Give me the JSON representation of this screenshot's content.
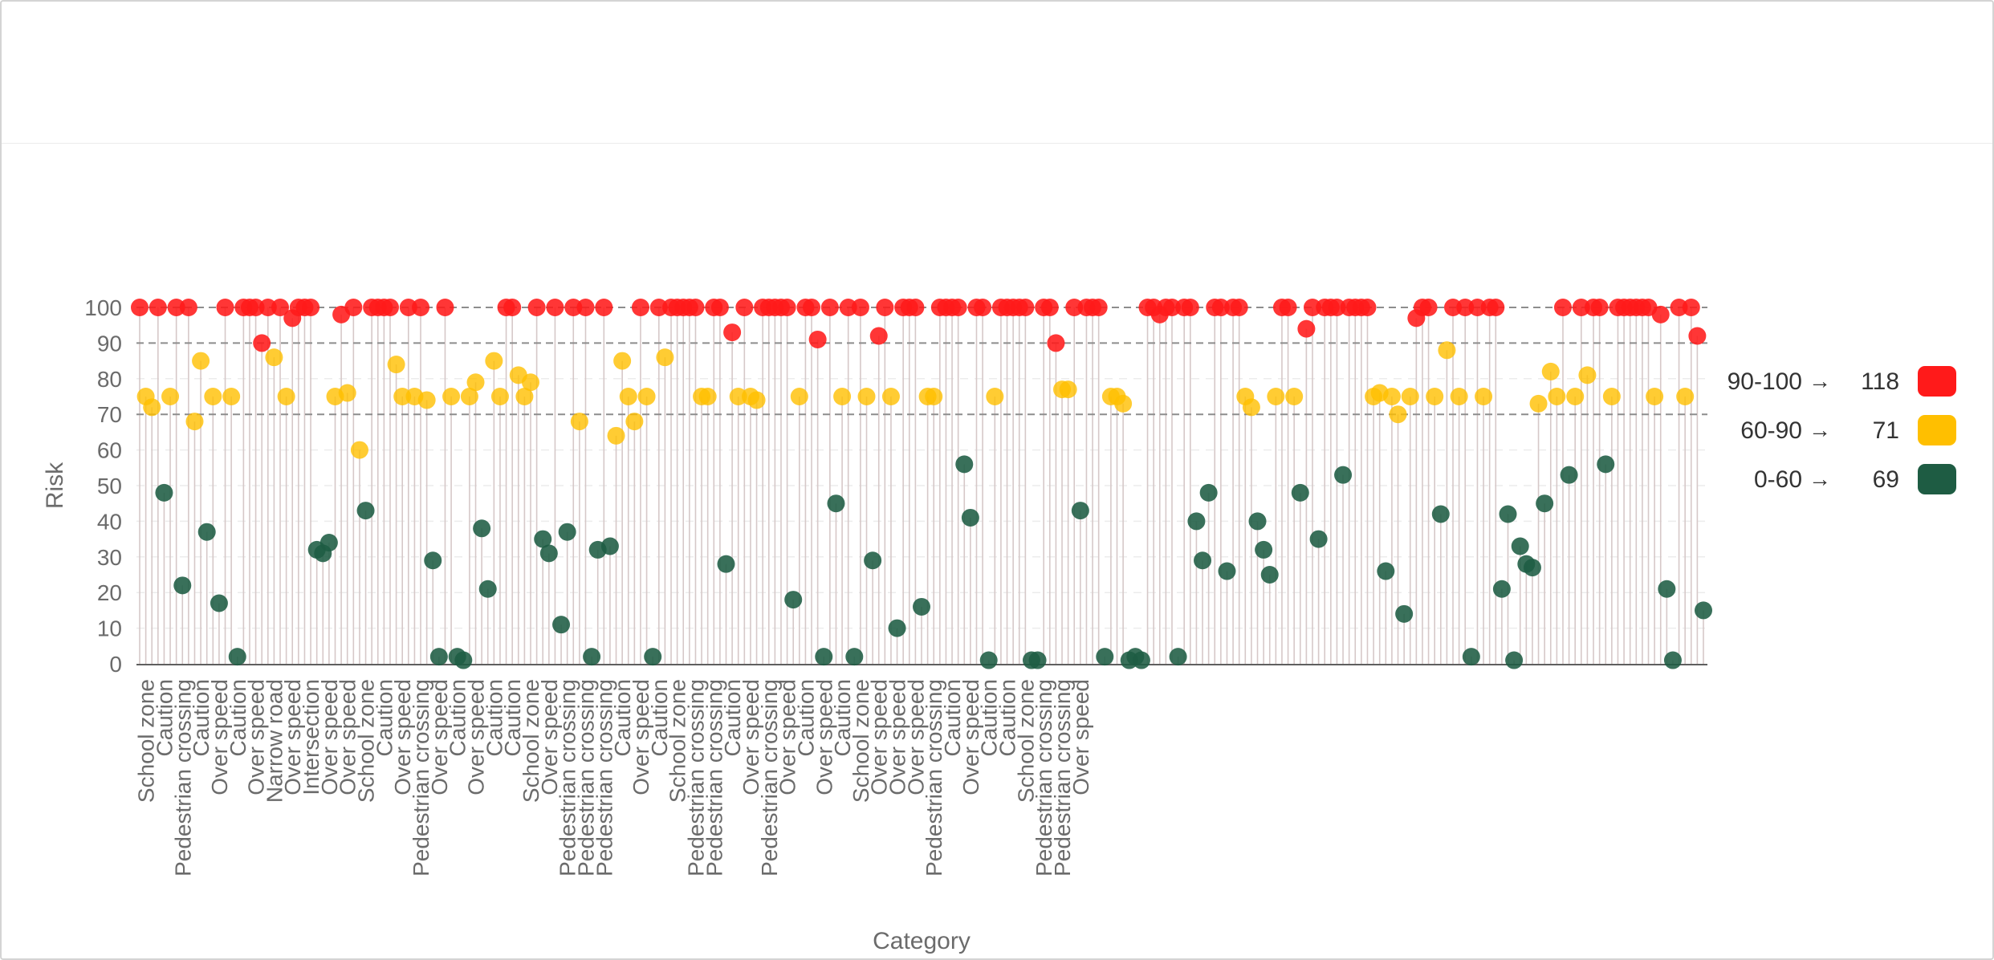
{
  "chart_data": {
    "type": "scatter",
    "subtype": "lollipop",
    "xlabel": "Category",
    "ylabel": "Risk",
    "ylim": [
      0,
      100
    ],
    "yticks": [
      0,
      10,
      20,
      30,
      40,
      50,
      60,
      70,
      80,
      90,
      100
    ],
    "reference_lines": [
      70,
      90,
      100
    ],
    "grid": true,
    "legend_position": "right",
    "legend": [
      {
        "range": "90-100",
        "arrow": "→",
        "count": "118",
        "color": "#ff1a1a"
      },
      {
        "range": "60-90",
        "arrow": "→",
        "count": "71",
        "color": "#ffbf00"
      },
      {
        "range": "0-60",
        "arrow": "→",
        "count": "69",
        "color": "#1e5c43"
      }
    ],
    "colors": {
      "high": "#ff1a1a",
      "medium": "#ffbf00",
      "low": "#1e5c43"
    },
    "categories": [
      "School zone",
      "Caution",
      "Pedestrian crossing",
      "Caution",
      "Over speed",
      "Caution",
      "Over speed",
      "Narrow road",
      "Over speed",
      "Intersection",
      "Over speed",
      "Over speed",
      "School zone",
      "Caution",
      "Over speed",
      "Pedestrian crossing",
      "Over speed",
      "Caution",
      "Over speed",
      "Caution",
      "Caution",
      "School zone",
      "Over speed",
      "Pedestrian crossing",
      "Pedestrian crossing",
      "Pedestrian crossing",
      "Caution",
      "Over speed",
      "Caution",
      "School zone",
      "Pedestrian crossing",
      "Pedestrian crossing",
      "Caution",
      "Over speed",
      "Pedestrian crossing",
      "Over speed",
      "Caution",
      "Over speed",
      "Caution",
      "School zone",
      "Over speed",
      "Over speed",
      "Over speed",
      "Pedestrian crossing",
      "Caution",
      "Over speed",
      "Caution",
      "Caution",
      "School zone",
      "Pedestrian crossing",
      "Pedestrian crossing",
      "Over speed"
    ],
    "values": [
      100,
      75,
      72,
      100,
      48,
      75,
      100,
      22,
      100,
      68,
      85,
      37,
      75,
      17,
      100,
      75,
      2,
      100,
      100,
      100,
      90,
      100,
      86,
      100,
      75,
      97,
      100,
      100,
      100,
      32,
      31,
      34,
      75,
      98,
      76,
      100,
      60,
      43,
      100,
      100,
      100,
      100,
      84,
      75,
      100,
      75,
      100,
      74,
      29,
      2,
      100,
      75,
      2,
      1,
      75,
      79,
      38,
      21,
      85,
      75,
      100,
      100,
      81,
      75,
      79,
      100,
      35,
      31,
      100,
      11,
      37,
      100,
      68,
      100,
      2,
      32,
      100,
      33,
      64,
      85,
      75,
      68,
      100,
      75,
      2,
      100,
      86,
      100,
      100,
      100,
      100,
      100,
      75,
      75,
      100,
      100,
      28,
      93,
      75,
      100,
      75,
      74,
      100,
      100,
      100,
      100,
      100,
      18,
      75,
      100,
      100,
      91,
      2,
      100,
      45,
      75,
      100,
      2,
      100,
      75,
      29,
      92,
      100,
      75,
      10,
      100,
      100,
      100,
      16,
      75,
      75,
      100,
      100,
      100,
      100,
      56,
      41,
      100,
      100,
      1,
      75,
      100,
      100,
      100,
      100,
      100,
      1,
      1,
      100,
      100,
      90,
      77,
      77,
      100,
      43,
      100,
      100,
      100,
      2,
      75,
      75,
      73,
      1,
      2,
      1,
      100,
      100,
      98,
      100,
      100,
      2,
      100,
      100,
      40,
      29,
      48,
      100,
      100,
      26,
      100,
      100,
      75,
      72,
      40,
      32,
      25,
      75,
      100,
      100,
      75,
      48,
      94,
      100,
      35,
      100,
      100,
      100,
      53,
      100,
      100,
      100,
      100,
      75,
      76,
      26,
      75,
      70,
      14,
      75,
      97,
      100,
      100,
      75,
      42,
      88,
      100,
      75,
      100,
      2,
      100,
      75,
      100,
      100,
      21,
      42,
      1,
      33,
      28,
      27,
      73,
      45,
      82,
      75,
      100,
      53,
      75,
      100,
      81,
      100,
      100,
      56,
      75,
      100,
      100,
      100,
      100,
      100,
      100,
      75,
      98,
      21,
      1,
      100,
      75,
      100,
      92,
      15
    ]
  }
}
